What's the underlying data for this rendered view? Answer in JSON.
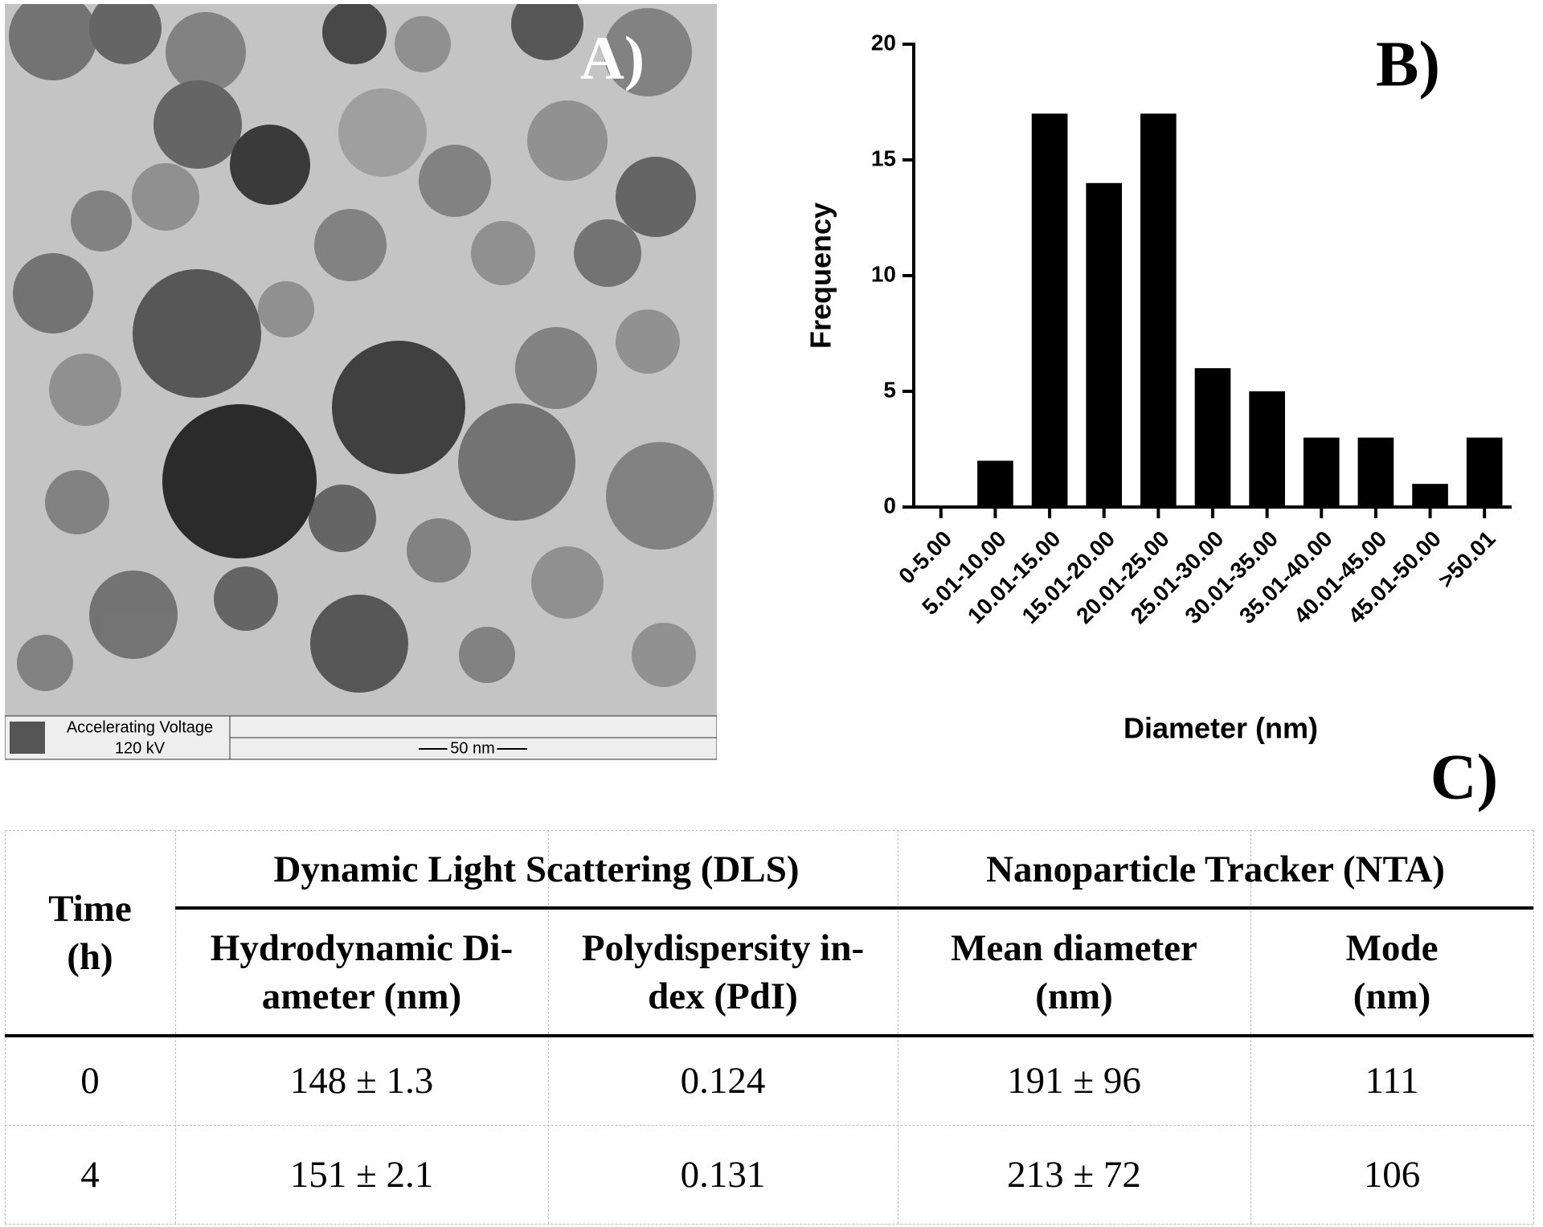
{
  "panels": {
    "a": "A)",
    "b": "B)",
    "c": "C)"
  },
  "tem": {
    "voltage_label": "Accelerating Voltage",
    "voltage_value": "120 kV",
    "scale_bar": "50 nm"
  },
  "chart_data": {
    "type": "bar",
    "xlabel": "Diameter (nm)",
    "ylabel": "Frequency",
    "categories": [
      "0-5.00",
      "5.01-10.00",
      "10.01-15.00",
      "15.01-20.00",
      "20.01-25.00",
      "25.01-30.00",
      "30.01-35.00",
      "35.01-40.00",
      "40.01-45.00",
      "45.01-50.00",
      ">50.01"
    ],
    "values": [
      0,
      2,
      17,
      14,
      17,
      6,
      5,
      3,
      3,
      1,
      3
    ],
    "color": "#000000",
    "ylim": [
      0,
      20
    ],
    "yticks": [
      0,
      5,
      10,
      15,
      20
    ]
  },
  "table": {
    "groups": [
      "Dynamic Light Scattering (DLS)",
      "Nanoparticle Tracker (NTA)"
    ],
    "columns": [
      [
        "Time",
        "(h)"
      ],
      [
        "Hydrodynamic Di-",
        "ameter (nm)"
      ],
      [
        "Polydispersity in-",
        "dex (PdI)"
      ],
      [
        "Mean diameter",
        "(nm)"
      ],
      [
        "Mode",
        "(nm)"
      ]
    ],
    "rows": [
      [
        "0",
        "148 ± 1.3",
        "0.124",
        "191 ± 96",
        "111"
      ],
      [
        "4",
        "151 ± 2.1",
        "0.131",
        "213 ± 72",
        "106"
      ]
    ]
  }
}
